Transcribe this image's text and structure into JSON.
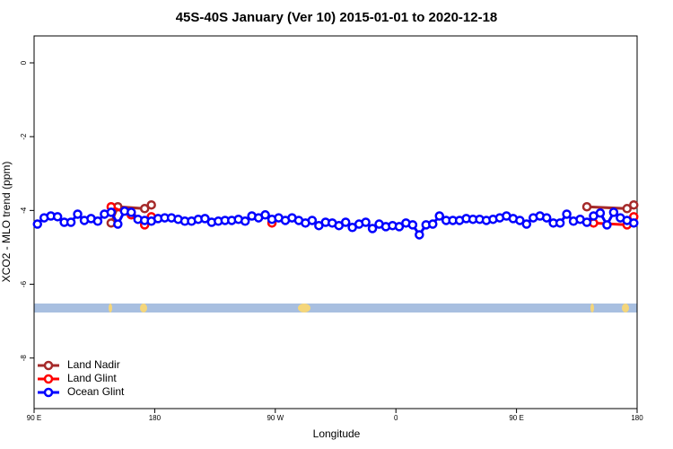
{
  "chart_data": {
    "type": "line",
    "title": "45S-40S January (Ver 10)   2015-01-01 to 2020-12-18",
    "x_label": "Longitude",
    "y_label": "XCO2 - MLO trend (ppm)",
    "xlim": [
      90,
      540
    ],
    "xticks": [
      {
        "value": 90,
        "label": "90 E"
      },
      {
        "value": 180,
        "label": "180"
      },
      {
        "value": 270,
        "label": "90 W"
      },
      {
        "value": 360,
        "label": "0"
      },
      {
        "value": 450,
        "label": "90 E"
      },
      {
        "value": 540,
        "label": "180"
      }
    ],
    "ylim": [
      -9.37,
      0.73
    ],
    "yticks": [
      0,
      -2,
      -4,
      -6,
      -8
    ],
    "legend_position": "bottom-left",
    "series": [
      {
        "name": "Land Nadir",
        "color": "#a52a2a",
        "x": [
          147.5,
          152.5,
          172.5,
          177.5,
          300,
          502.5,
          532.5,
          537.5
        ],
        "values": [
          -4.34,
          -3.9,
          -3.95,
          -3.85,
          null,
          -3.9,
          -3.95,
          -3.85
        ]
      },
      {
        "name": "Land Glint",
        "color": "#ff0000",
        "x": [
          147.5,
          162.5,
          172.5,
          177.5,
          220,
          267.5,
          300,
          507.5,
          532.5,
          537.5
        ],
        "values": [
          -3.9,
          -4.12,
          -4.39,
          -4.17,
          null,
          -4.34,
          null,
          -4.34,
          -4.39,
          -4.17
        ]
      },
      {
        "name": "Ocean Glint",
        "color": "#0000ff",
        "x": [
          92.5,
          97.5,
          102.5,
          107.5,
          112.5,
          117.5,
          122.5,
          127.5,
          132.5,
          137.5,
          142.5,
          147.5,
          152.5,
          157.5,
          162.5,
          167.5,
          172.5,
          177.5,
          182.5,
          187.5,
          192.5,
          197.5,
          202.5,
          207.5,
          212.5,
          217.5,
          222.5,
          227.5,
          232.5,
          237.5,
          242.5,
          247.5,
          252.5,
          257.5,
          262.5,
          267.5,
          272.5,
          277.5,
          282.5,
          287.5,
          292.5,
          297.5,
          302.5,
          307.5,
          312.5,
          317.5,
          322.5,
          327.5,
          332.5,
          337.5,
          342.5,
          347.5,
          352.5,
          357.5,
          362.5,
          367.5,
          372.5,
          377.5,
          382.5,
          387.5,
          392.5,
          397.5,
          402.5,
          407.5,
          412.5,
          417.5,
          422.5,
          427.5,
          432.5,
          437.5,
          442.5,
          447.5,
          452.5,
          457.5,
          462.5,
          467.5,
          472.5,
          477.5,
          482.5,
          487.5,
          492.5,
          497.5,
          502.5,
          507.5,
          512.5,
          517.5,
          522.5,
          527.5,
          532.5,
          537.5
        ],
        "values": [
          -4.37,
          -4.2,
          -4.15,
          -4.17,
          -4.32,
          -4.32,
          -4.1,
          -4.27,
          -4.22,
          -4.29,
          -4.1,
          -4.05,
          -4.37,
          -4.02,
          -4.05,
          -4.24,
          -4.27,
          -4.29,
          -4.22,
          -4.2,
          -4.2,
          -4.24,
          -4.29,
          -4.29,
          -4.24,
          -4.22,
          -4.32,
          -4.29,
          -4.27,
          -4.27,
          -4.24,
          -4.29,
          -4.15,
          -4.2,
          -4.12,
          -4.24,
          -4.2,
          -4.27,
          -4.2,
          -4.27,
          -4.34,
          -4.27,
          -4.41,
          -4.32,
          -4.34,
          -4.41,
          -4.32,
          -4.46,
          -4.37,
          -4.32,
          -4.49,
          -4.37,
          -4.44,
          -4.41,
          -4.44,
          -4.34,
          -4.39,
          -4.66,
          -4.39,
          -4.37,
          -4.15,
          -4.27,
          -4.27,
          -4.27,
          -4.22,
          -4.24,
          -4.24,
          -4.27,
          -4.24,
          -4.2,
          -4.15,
          -4.22,
          -4.27,
          -4.37,
          -4.2,
          -4.15,
          -4.2,
          -4.34,
          -4.34,
          -4.1,
          -4.29,
          -4.24,
          -4.32,
          -4.15,
          -4.07,
          -4.39,
          -4.05,
          -4.2,
          -4.27,
          -4.34
        ]
      }
    ]
  }
}
